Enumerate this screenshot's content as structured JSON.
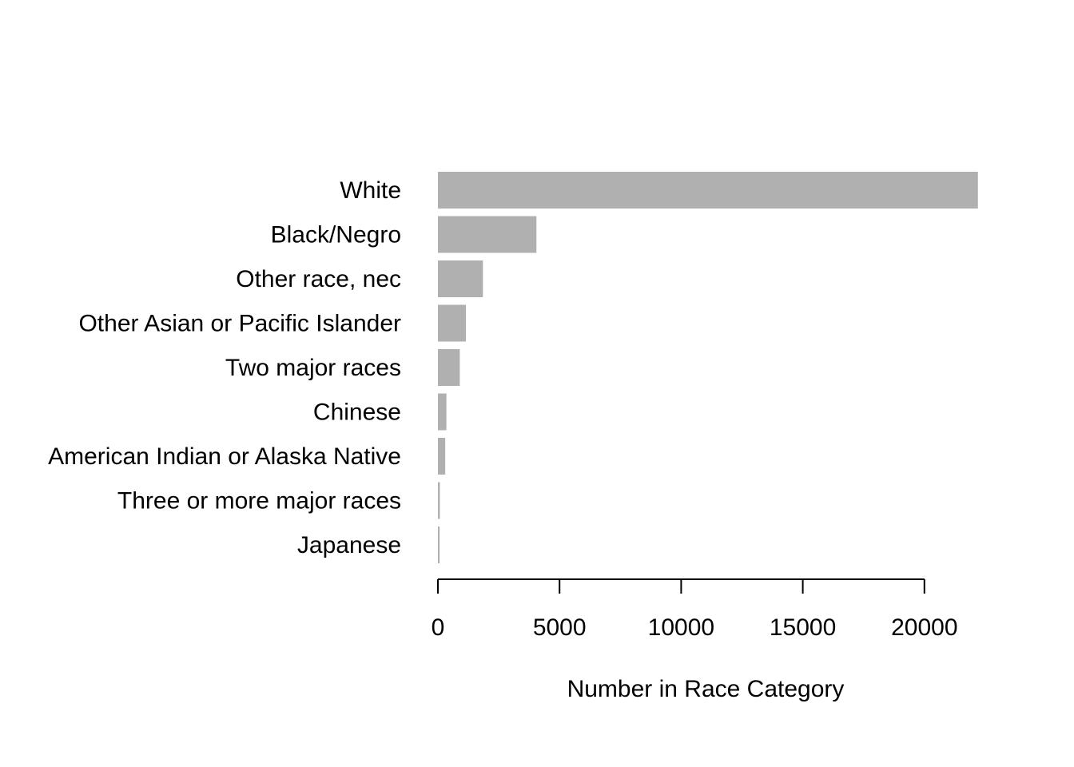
{
  "chart_data": {
    "type": "bar",
    "orientation": "horizontal",
    "categories": [
      "White",
      "Black/Negro",
      "Other race, nec",
      "Other Asian or Pacific Islander",
      "Two major races",
      "Chinese",
      "American Indian or Alaska Native",
      "Three or more major races",
      "Japanese"
    ],
    "values": [
      22200,
      4050,
      1850,
      1150,
      900,
      350,
      300,
      80,
      70
    ],
    "xlabel": "Number in Race Category",
    "ylabel": "",
    "title": "",
    "xlim": [
      0,
      20000
    ],
    "xticks": [
      0,
      5000,
      10000,
      15000,
      20000
    ],
    "xtick_labels": [
      "0",
      "5000",
      "10000",
      "15000",
      "20000"
    ],
    "grid": false,
    "bar_color": "#b0b0b0"
  }
}
